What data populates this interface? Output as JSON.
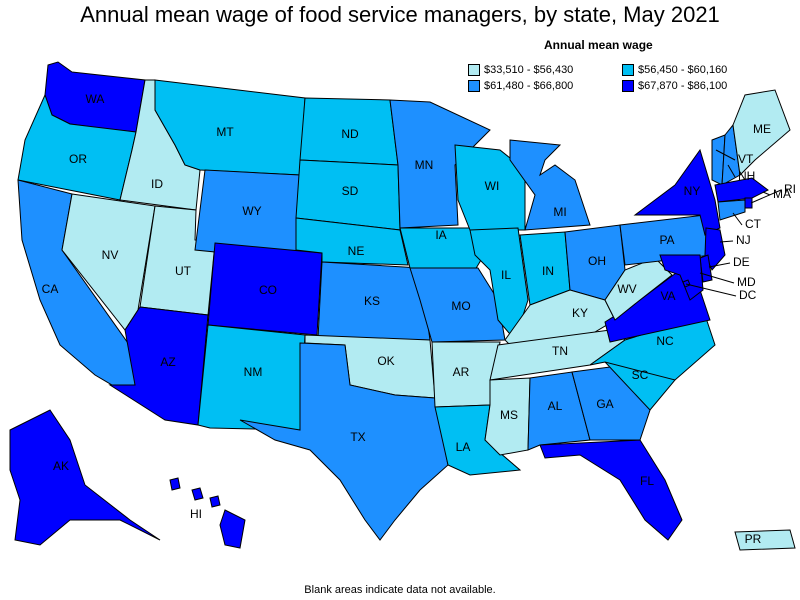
{
  "title": "Annual mean wage of food service managers, by state, May 2021",
  "legend": {
    "title": "Annual mean wage",
    "items": [
      {
        "range": "$33,510 - $56,430",
        "color": "#b2ebf2"
      },
      {
        "range": "$56,450 - $60,160",
        "color": "#00bff3"
      },
      {
        "range": "$61,480 - $66,800",
        "color": "#1e90ff"
      },
      {
        "range": "$67,870 - $86,100",
        "color": "#0000ff"
      }
    ]
  },
  "footnote": "Blank areas indicate data not available.",
  "states": [
    {
      "abbr": "WA",
      "class": 4
    },
    {
      "abbr": "OR",
      "class": 2
    },
    {
      "abbr": "CA",
      "class": 3
    },
    {
      "abbr": "ID",
      "class": 1
    },
    {
      "abbr": "NV",
      "class": 1
    },
    {
      "abbr": "UT",
      "class": 1
    },
    {
      "abbr": "AZ",
      "class": 4
    },
    {
      "abbr": "MT",
      "class": 2
    },
    {
      "abbr": "WY",
      "class": 3
    },
    {
      "abbr": "CO",
      "class": 4
    },
    {
      "abbr": "NM",
      "class": 2
    },
    {
      "abbr": "ND",
      "class": 2
    },
    {
      "abbr": "SD",
      "class": 2
    },
    {
      "abbr": "NE",
      "class": 2
    },
    {
      "abbr": "KS",
      "class": 3
    },
    {
      "abbr": "OK",
      "class": 1
    },
    {
      "abbr": "TX",
      "class": 3
    },
    {
      "abbr": "MN",
      "class": 3
    },
    {
      "abbr": "IA",
      "class": 2
    },
    {
      "abbr": "MO",
      "class": 3
    },
    {
      "abbr": "AR",
      "class": 1
    },
    {
      "abbr": "LA",
      "class": 2
    },
    {
      "abbr": "WI",
      "class": 2
    },
    {
      "abbr": "IL",
      "class": 2
    },
    {
      "abbr": "MI",
      "class": 3
    },
    {
      "abbr": "IN",
      "class": 2
    },
    {
      "abbr": "OH",
      "class": 3
    },
    {
      "abbr": "KY",
      "class": 1
    },
    {
      "abbr": "TN",
      "class": 1
    },
    {
      "abbr": "MS",
      "class": 1
    },
    {
      "abbr": "AL",
      "class": 3
    },
    {
      "abbr": "GA",
      "class": 3
    },
    {
      "abbr": "FL",
      "class": 4
    },
    {
      "abbr": "SC",
      "class": 2
    },
    {
      "abbr": "NC",
      "class": 2
    },
    {
      "abbr": "VA",
      "class": 4
    },
    {
      "abbr": "WV",
      "class": 1
    },
    {
      "abbr": "PA",
      "class": 3
    },
    {
      "abbr": "NY",
      "class": 4
    },
    {
      "abbr": "VT",
      "class": 3
    },
    {
      "abbr": "NH",
      "class": 3
    },
    {
      "abbr": "ME",
      "class": 1
    },
    {
      "abbr": "MA",
      "class": 4
    },
    {
      "abbr": "RI",
      "class": 4
    },
    {
      "abbr": "CT",
      "class": 3
    },
    {
      "abbr": "NJ",
      "class": 4
    },
    {
      "abbr": "DE",
      "class": 4
    },
    {
      "abbr": "MD",
      "class": 4
    },
    {
      "abbr": "DC",
      "class": 4
    },
    {
      "abbr": "AK",
      "class": 4
    },
    {
      "abbr": "HI",
      "class": 4
    },
    {
      "abbr": "PR",
      "class": 1
    }
  ]
}
